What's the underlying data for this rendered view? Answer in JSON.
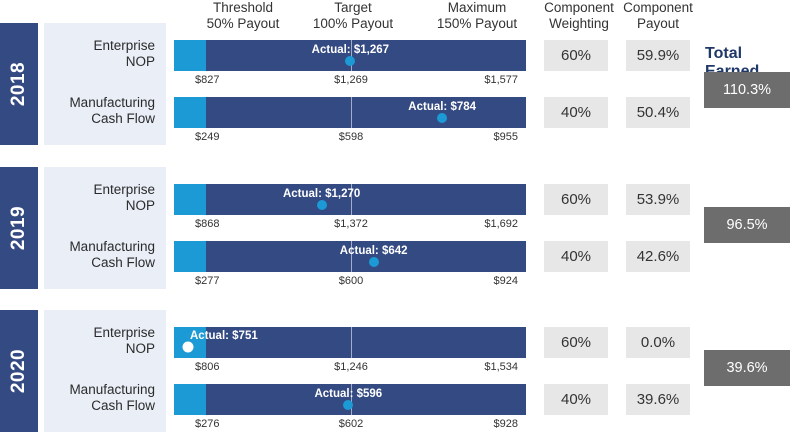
{
  "headers": {
    "threshold": "Threshold\n50% Payout",
    "target": "Target\n100% Payout",
    "maximum": "Maximum\n150% Payout",
    "weighting": "Component\nWeighting",
    "payout": "Component\nPayout"
  },
  "total_title": "Total Earned",
  "colors": {
    "navy": "#344a82",
    "threshold_zone": "#1b9ad6",
    "label_bg": "#e9eef7",
    "cell_bg": "#e7e7e7",
    "total_bg": "#6d6d6d",
    "title": "#1f3868"
  },
  "chart_data": {
    "type": "bar",
    "years": [
      {
        "year": "2018",
        "total_earned": "110.3%",
        "metrics": [
          {
            "name": "Enterprise\nNOP",
            "actual_label": "Actual: $1,267",
            "actual": 1267,
            "threshold": 827,
            "target": 1269,
            "maximum": 1577,
            "threshold_label": "$827",
            "target_label": "$1,269",
            "maximum_label": "$1,577",
            "weighting": "60%",
            "payout": "59.9%",
            "dot_white": false
          },
          {
            "name": "Manufacturing\nCash Flow",
            "actual_label": "Actual: $784",
            "actual": 784,
            "threshold": 249,
            "target": 598,
            "maximum": 955,
            "threshold_label": "$249",
            "target_label": "$598",
            "maximum_label": "$955",
            "weighting": "40%",
            "payout": "50.4%",
            "dot_white": false
          }
        ]
      },
      {
        "year": "2019",
        "total_earned": "96.5%",
        "metrics": [
          {
            "name": "Enterprise\nNOP",
            "actual_label": "Actual: $1,270",
            "actual": 1270,
            "threshold": 868,
            "target": 1372,
            "maximum": 1692,
            "threshold_label": "$868",
            "target_label": "$1,372",
            "maximum_label": "$1,692",
            "weighting": "60%",
            "payout": "53.9%",
            "dot_white": false
          },
          {
            "name": "Manufacturing\nCash Flow",
            "actual_label": "Actual: $642",
            "actual": 642,
            "threshold": 277,
            "target": 600,
            "maximum": 924,
            "threshold_label": "$277",
            "target_label": "$600",
            "maximum_label": "$924",
            "weighting": "40%",
            "payout": "42.6%",
            "dot_white": false
          }
        ]
      },
      {
        "year": "2020",
        "total_earned": "39.6%",
        "metrics": [
          {
            "name": "Enterprise\nNOP",
            "actual_label": "Actual: $751",
            "actual": 751,
            "threshold": 806,
            "target": 1246,
            "maximum": 1534,
            "threshold_label": "$806",
            "target_label": "$1,246",
            "maximum_label": "$1,534",
            "weighting": "60%",
            "payout": "0.0%",
            "dot_white": true
          },
          {
            "name": "Manufacturing\nCash Flow",
            "actual_label": "Actual: $596",
            "actual": 596,
            "threshold": 276,
            "target": 602,
            "maximum": 928,
            "threshold_label": "$276",
            "target_label": "$602",
            "maximum_label": "$928",
            "weighting": "40%",
            "payout": "39.6%",
            "dot_white": false
          }
        ]
      }
    ]
  }
}
